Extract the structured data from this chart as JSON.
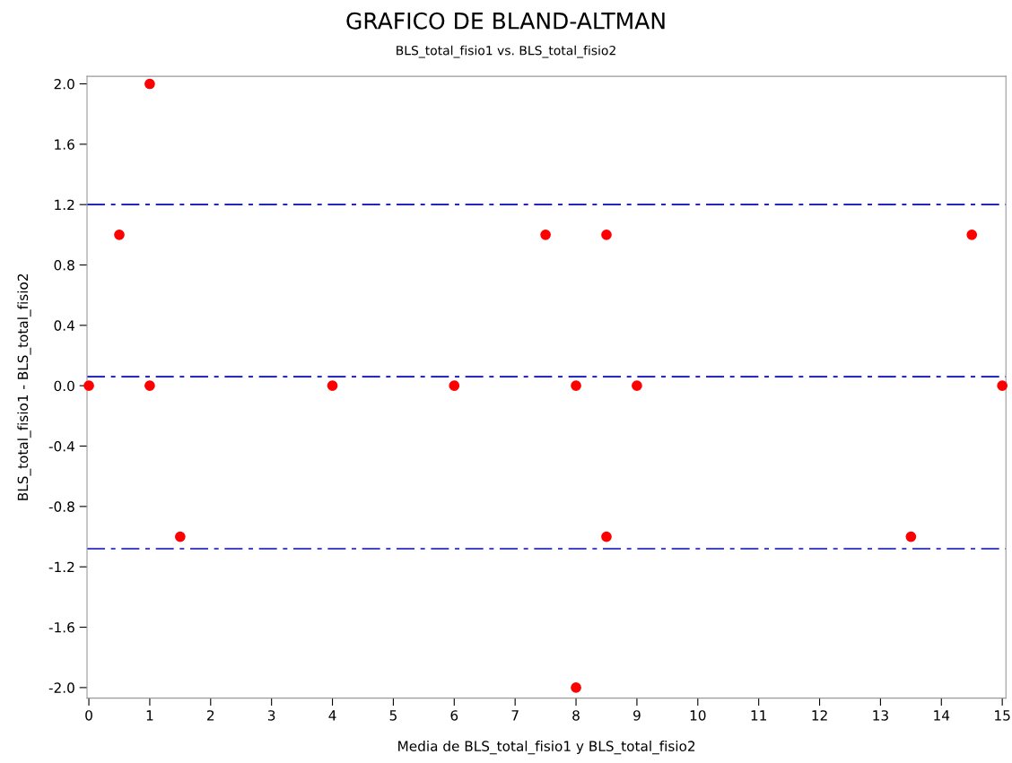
{
  "chart_data": {
    "type": "scatter",
    "title": "GRAFICO DE BLAND-ALTMAN",
    "subtitle": "BLS_total_fisio1 vs. BLS_total_fisio2",
    "xlabel": "Media de BLS_total_fisio1 y BLS_total_fisio2",
    "ylabel": "BLS_total_fisio1 - BLS_total_fisio2",
    "series": [
      {
        "color": "#ff0000",
        "x": [
          0,
          0.5,
          1,
          1,
          1.5,
          4,
          6,
          7.5,
          8,
          8,
          8.5,
          8.5,
          9,
          13.5,
          14.5,
          15
        ],
        "values": [
          0,
          1,
          2,
          0,
          -1,
          0,
          0,
          1,
          0,
          -2,
          1,
          -1,
          0,
          -1,
          1,
          0
        ]
      }
    ],
    "marker": "circle",
    "grid": false,
    "legend": false,
    "xlim": [
      -0.03,
      15.06
    ],
    "xticks": [
      0,
      1,
      2,
      3,
      4,
      5,
      6,
      7,
      8,
      9,
      10,
      11,
      12,
      13,
      14,
      15
    ],
    "ylim": [
      -2.07,
      2.05
    ],
    "yticks": [
      {
        "value": -2.0,
        "label": "-2.0"
      },
      {
        "value": -1.6,
        "label": "-1.6"
      },
      {
        "value": -1.2,
        "label": "-1.2"
      },
      {
        "value": -0.8,
        "label": "-0.8"
      },
      {
        "value": -0.4,
        "label": "-0.4"
      },
      {
        "value": 0.0,
        "label": "0.0"
      },
      {
        "value": 0.4,
        "label": "0.4"
      },
      {
        "value": 0.8,
        "label": "0.8"
      },
      {
        "value": 1.2,
        "label": "1.2"
      },
      {
        "value": 1.6,
        "label": "1.6"
      },
      {
        "value": 2.0,
        "label": "2.0"
      }
    ],
    "ref_lines": [
      {
        "axis": "y",
        "value": 1.2,
        "color": "#0000ff",
        "line_style": "dashdot"
      },
      {
        "axis": "y",
        "value": 0.06,
        "color": "#0000ff",
        "line_style": "dashdot"
      },
      {
        "axis": "y",
        "value": -1.08,
        "color": "#0000ff",
        "line_style": "dashdot"
      }
    ]
  }
}
